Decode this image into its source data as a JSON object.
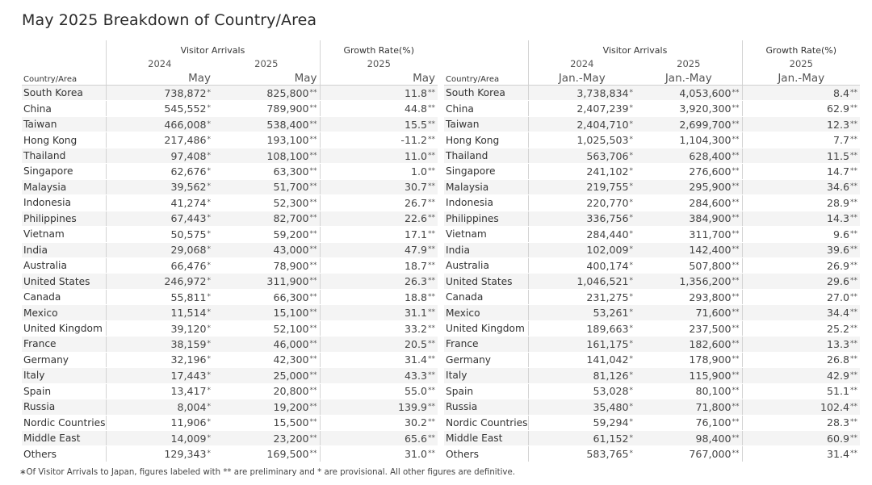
{
  "title": "May 2025 Breakdown of Country/Area",
  "chart_data": [
    {
      "type": "table",
      "header": {
        "group_arrivals": "Visitor Arrivals",
        "group_growth": "Growth Rate(%)",
        "year_a": "2024",
        "year_b": "2025",
        "year_c": "2025",
        "row_header": "Country/Area",
        "period_a": "May",
        "period_b": "May",
        "period_c": "May"
      },
      "rows": [
        {
          "country": "South Korea",
          "v2024": "738,872",
          "m2024": "*",
          "v2025": "825,800",
          "m2025": "**",
          "growth": "11.8",
          "mg": "**"
        },
        {
          "country": "China",
          "v2024": "545,552",
          "m2024": "*",
          "v2025": "789,900",
          "m2025": "**",
          "growth": "44.8",
          "mg": "**"
        },
        {
          "country": "Taiwan",
          "v2024": "466,008",
          "m2024": "*",
          "v2025": "538,400",
          "m2025": "**",
          "growth": "15.5",
          "mg": "**"
        },
        {
          "country": "Hong Kong",
          "v2024": "217,486",
          "m2024": "*",
          "v2025": "193,100",
          "m2025": "**",
          "growth": "-11.2",
          "mg": "**"
        },
        {
          "country": "Thailand",
          "v2024": "97,408",
          "m2024": "*",
          "v2025": "108,100",
          "m2025": "**",
          "growth": "11.0",
          "mg": "**"
        },
        {
          "country": "Singapore",
          "v2024": "62,676",
          "m2024": "*",
          "v2025": "63,300",
          "m2025": "**",
          "growth": "1.0",
          "mg": "**"
        },
        {
          "country": "Malaysia",
          "v2024": "39,562",
          "m2024": "*",
          "v2025": "51,700",
          "m2025": "**",
          "growth": "30.7",
          "mg": "**"
        },
        {
          "country": "Indonesia",
          "v2024": "41,274",
          "m2024": "*",
          "v2025": "52,300",
          "m2025": "**",
          "growth": "26.7",
          "mg": "**"
        },
        {
          "country": "Philippines",
          "v2024": "67,443",
          "m2024": "*",
          "v2025": "82,700",
          "m2025": "**",
          "growth": "22.6",
          "mg": "**"
        },
        {
          "country": "Vietnam",
          "v2024": "50,575",
          "m2024": "*",
          "v2025": "59,200",
          "m2025": "**",
          "growth": "17.1",
          "mg": "**"
        },
        {
          "country": "India",
          "v2024": "29,068",
          "m2024": "*",
          "v2025": "43,000",
          "m2025": "**",
          "growth": "47.9",
          "mg": "**"
        },
        {
          "country": "Australia",
          "v2024": "66,476",
          "m2024": "*",
          "v2025": "78,900",
          "m2025": "**",
          "growth": "18.7",
          "mg": "**"
        },
        {
          "country": "United States",
          "v2024": "246,972",
          "m2024": "*",
          "v2025": "311,900",
          "m2025": "**",
          "growth": "26.3",
          "mg": "**"
        },
        {
          "country": "Canada",
          "v2024": "55,811",
          "m2024": "*",
          "v2025": "66,300",
          "m2025": "**",
          "growth": "18.8",
          "mg": "**"
        },
        {
          "country": "Mexico",
          "v2024": "11,514",
          "m2024": "*",
          "v2025": "15,100",
          "m2025": "**",
          "growth": "31.1",
          "mg": "**"
        },
        {
          "country": "United Kingdom",
          "v2024": "39,120",
          "m2024": "*",
          "v2025": "52,100",
          "m2025": "**",
          "growth": "33.2",
          "mg": "**"
        },
        {
          "country": "France",
          "v2024": "38,159",
          "m2024": "*",
          "v2025": "46,000",
          "m2025": "**",
          "growth": "20.5",
          "mg": "**"
        },
        {
          "country": "Germany",
          "v2024": "32,196",
          "m2024": "*",
          "v2025": "42,300",
          "m2025": "**",
          "growth": "31.4",
          "mg": "**"
        },
        {
          "country": "Italy",
          "v2024": "17,443",
          "m2024": "*",
          "v2025": "25,000",
          "m2025": "**",
          "growth": "43.3",
          "mg": "**"
        },
        {
          "country": "Spain",
          "v2024": "13,417",
          "m2024": "*",
          "v2025": "20,800",
          "m2025": "**",
          "growth": "55.0",
          "mg": "**"
        },
        {
          "country": "Russia",
          "v2024": "8,004",
          "m2024": "*",
          "v2025": "19,200",
          "m2025": "**",
          "growth": "139.9",
          "mg": "**"
        },
        {
          "country": "Nordic Countries",
          "v2024": "11,906",
          "m2024": "*",
          "v2025": "15,500",
          "m2025": "**",
          "growth": "30.2",
          "mg": "**"
        },
        {
          "country": "Middle East",
          "v2024": "14,009",
          "m2024": "*",
          "v2025": "23,200",
          "m2025": "**",
          "growth": "65.6",
          "mg": "**"
        },
        {
          "country": "Others",
          "v2024": "129,343",
          "m2024": "*",
          "v2025": "169,500",
          "m2025": "**",
          "growth": "31.0",
          "mg": "**"
        }
      ]
    },
    {
      "type": "table",
      "header": {
        "group_arrivals": "Visitor Arrivals",
        "group_growth": "Growth Rate(%)",
        "year_a": "2024",
        "year_b": "2025",
        "year_c": "2025",
        "row_header": "Country/Area",
        "period_a": "Jan.-May",
        "period_b": "Jan.-May",
        "period_c": "Jan.-May"
      },
      "rows": [
        {
          "country": "South Korea",
          "v2024": "3,738,834",
          "m2024": "*",
          "v2025": "4,053,600",
          "m2025": "**",
          "growth": "8.4",
          "mg": "**"
        },
        {
          "country": "China",
          "v2024": "2,407,239",
          "m2024": "*",
          "v2025": "3,920,300",
          "m2025": "**",
          "growth": "62.9",
          "mg": "**"
        },
        {
          "country": "Taiwan",
          "v2024": "2,404,710",
          "m2024": "*",
          "v2025": "2,699,700",
          "m2025": "**",
          "growth": "12.3",
          "mg": "**"
        },
        {
          "country": "Hong Kong",
          "v2024": "1,025,503",
          "m2024": "*",
          "v2025": "1,104,300",
          "m2025": "**",
          "growth": "7.7",
          "mg": "**"
        },
        {
          "country": "Thailand",
          "v2024": "563,706",
          "m2024": "*",
          "v2025": "628,400",
          "m2025": "**",
          "growth": "11.5",
          "mg": "**"
        },
        {
          "country": "Singapore",
          "v2024": "241,102",
          "m2024": "*",
          "v2025": "276,600",
          "m2025": "**",
          "growth": "14.7",
          "mg": "**"
        },
        {
          "country": "Malaysia",
          "v2024": "219,755",
          "m2024": "*",
          "v2025": "295,900",
          "m2025": "**",
          "growth": "34.6",
          "mg": "**"
        },
        {
          "country": "Indonesia",
          "v2024": "220,770",
          "m2024": "*",
          "v2025": "284,600",
          "m2025": "**",
          "growth": "28.9",
          "mg": "**"
        },
        {
          "country": "Philippines",
          "v2024": "336,756",
          "m2024": "*",
          "v2025": "384,900",
          "m2025": "**",
          "growth": "14.3",
          "mg": "**"
        },
        {
          "country": "Vietnam",
          "v2024": "284,440",
          "m2024": "*",
          "v2025": "311,700",
          "m2025": "**",
          "growth": "9.6",
          "mg": "**"
        },
        {
          "country": "India",
          "v2024": "102,009",
          "m2024": "*",
          "v2025": "142,400",
          "m2025": "**",
          "growth": "39.6",
          "mg": "**"
        },
        {
          "country": "Australia",
          "v2024": "400,174",
          "m2024": "*",
          "v2025": "507,800",
          "m2025": "**",
          "growth": "26.9",
          "mg": "**"
        },
        {
          "country": "United States",
          "v2024": "1,046,521",
          "m2024": "*",
          "v2025": "1,356,200",
          "m2025": "**",
          "growth": "29.6",
          "mg": "**"
        },
        {
          "country": "Canada",
          "v2024": "231,275",
          "m2024": "*",
          "v2025": "293,800",
          "m2025": "**",
          "growth": "27.0",
          "mg": "**"
        },
        {
          "country": "Mexico",
          "v2024": "53,261",
          "m2024": "*",
          "v2025": "71,600",
          "m2025": "**",
          "growth": "34.4",
          "mg": "**"
        },
        {
          "country": "United Kingdom",
          "v2024": "189,663",
          "m2024": "*",
          "v2025": "237,500",
          "m2025": "**",
          "growth": "25.2",
          "mg": "**"
        },
        {
          "country": "France",
          "v2024": "161,175",
          "m2024": "*",
          "v2025": "182,600",
          "m2025": "**",
          "growth": "13.3",
          "mg": "**"
        },
        {
          "country": "Germany",
          "v2024": "141,042",
          "m2024": "*",
          "v2025": "178,900",
          "m2025": "**",
          "growth": "26.8",
          "mg": "**"
        },
        {
          "country": "Italy",
          "v2024": "81,126",
          "m2024": "*",
          "v2025": "115,900",
          "m2025": "**",
          "growth": "42.9",
          "mg": "**"
        },
        {
          "country": "Spain",
          "v2024": "53,028",
          "m2024": "*",
          "v2025": "80,100",
          "m2025": "**",
          "growth": "51.1",
          "mg": "**"
        },
        {
          "country": "Russia",
          "v2024": "35,480",
          "m2024": "*",
          "v2025": "71,800",
          "m2025": "**",
          "growth": "102.4",
          "mg": "**"
        },
        {
          "country": "Nordic Countries",
          "v2024": "59,294",
          "m2024": "*",
          "v2025": "76,100",
          "m2025": "**",
          "growth": "28.3",
          "mg": "**"
        },
        {
          "country": "Middle East",
          "v2024": "61,152",
          "m2024": "*",
          "v2025": "98,400",
          "m2025": "**",
          "growth": "60.9",
          "mg": "**"
        },
        {
          "country": "Others",
          "v2024": "583,765",
          "m2024": "*",
          "v2025": "767,000",
          "m2025": "**",
          "growth": "31.4",
          "mg": "**"
        }
      ]
    }
  ],
  "footer": {
    "note": "∗Of Visitor Arrivals to Japan, figures labeled with ** are preliminary and * are provisional. All other figures are definitive."
  }
}
